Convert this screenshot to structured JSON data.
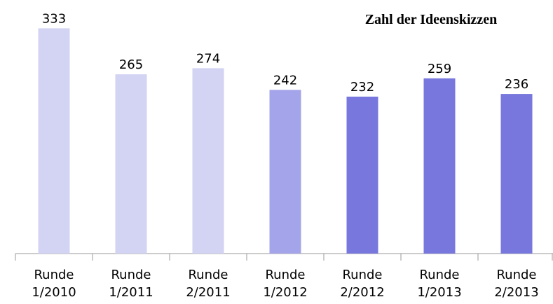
{
  "chart_data": {
    "type": "bar",
    "title": "Zahl der Ideenskizzen",
    "categories": [
      [
        "Runde",
        "1/2010"
      ],
      [
        "Runde",
        "1/2011"
      ],
      [
        "Runde",
        "2/2011"
      ],
      [
        "Runde",
        "1/2012"
      ],
      [
        "Runde",
        "2/2012"
      ],
      [
        "Runde",
        "1/2013"
      ],
      [
        "Runde",
        "2/2013"
      ]
    ],
    "values": [
      333,
      265,
      274,
      242,
      232,
      259,
      236
    ],
    "colors": [
      "#d3d3f4",
      "#d3d3f4",
      "#d3d3f4",
      "#a4a4ea",
      "#7777dd",
      "#7777dd",
      "#7777dd"
    ],
    "ylim": [
      0,
      350
    ]
  }
}
